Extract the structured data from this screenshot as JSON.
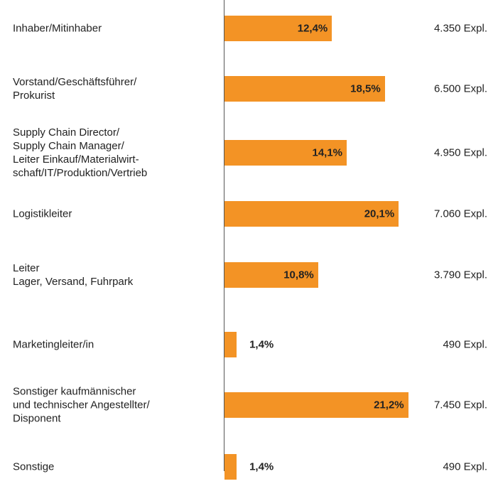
{
  "chart_data": {
    "type": "bar",
    "orientation": "horizontal",
    "color": "#f39325",
    "categories": [
      "Inhaber/Mitinhaber",
      "Vorstand/Geschäftsführer/\nProkurist",
      "Supply Chain Director/\nSupply Chain Manager/\nLeiter Einkauf/Materialwirt-\nschaft/IT/Produktion/Vertrieb",
      "Logistikleiter",
      "Leiter\nLager, Versand, Fuhrpark",
      "Marketingleiter/in",
      "Sonstiger kaufmännischer\nund technischer Angestellter/\nDisponent",
      "Sonstige"
    ],
    "values": [
      12.4,
      18.5,
      14.1,
      20.1,
      10.8,
      1.4,
      21.2,
      1.4
    ],
    "value_labels": [
      "12,4%",
      "18,5%",
      "14,1%",
      "20,1%",
      "10,8%",
      "1,4%",
      "21,2%",
      "1,4%"
    ],
    "counts": [
      4350,
      6500,
      4950,
      7060,
      3790,
      490,
      7450,
      490
    ],
    "count_labels": [
      "4.350 Expl.",
      "6.500 Expl.",
      "4.950 Expl.",
      "7.060 Expl.",
      "3.790 Expl.",
      "490 Expl.",
      "7.450 Expl.",
      "490 Expl."
    ]
  }
}
